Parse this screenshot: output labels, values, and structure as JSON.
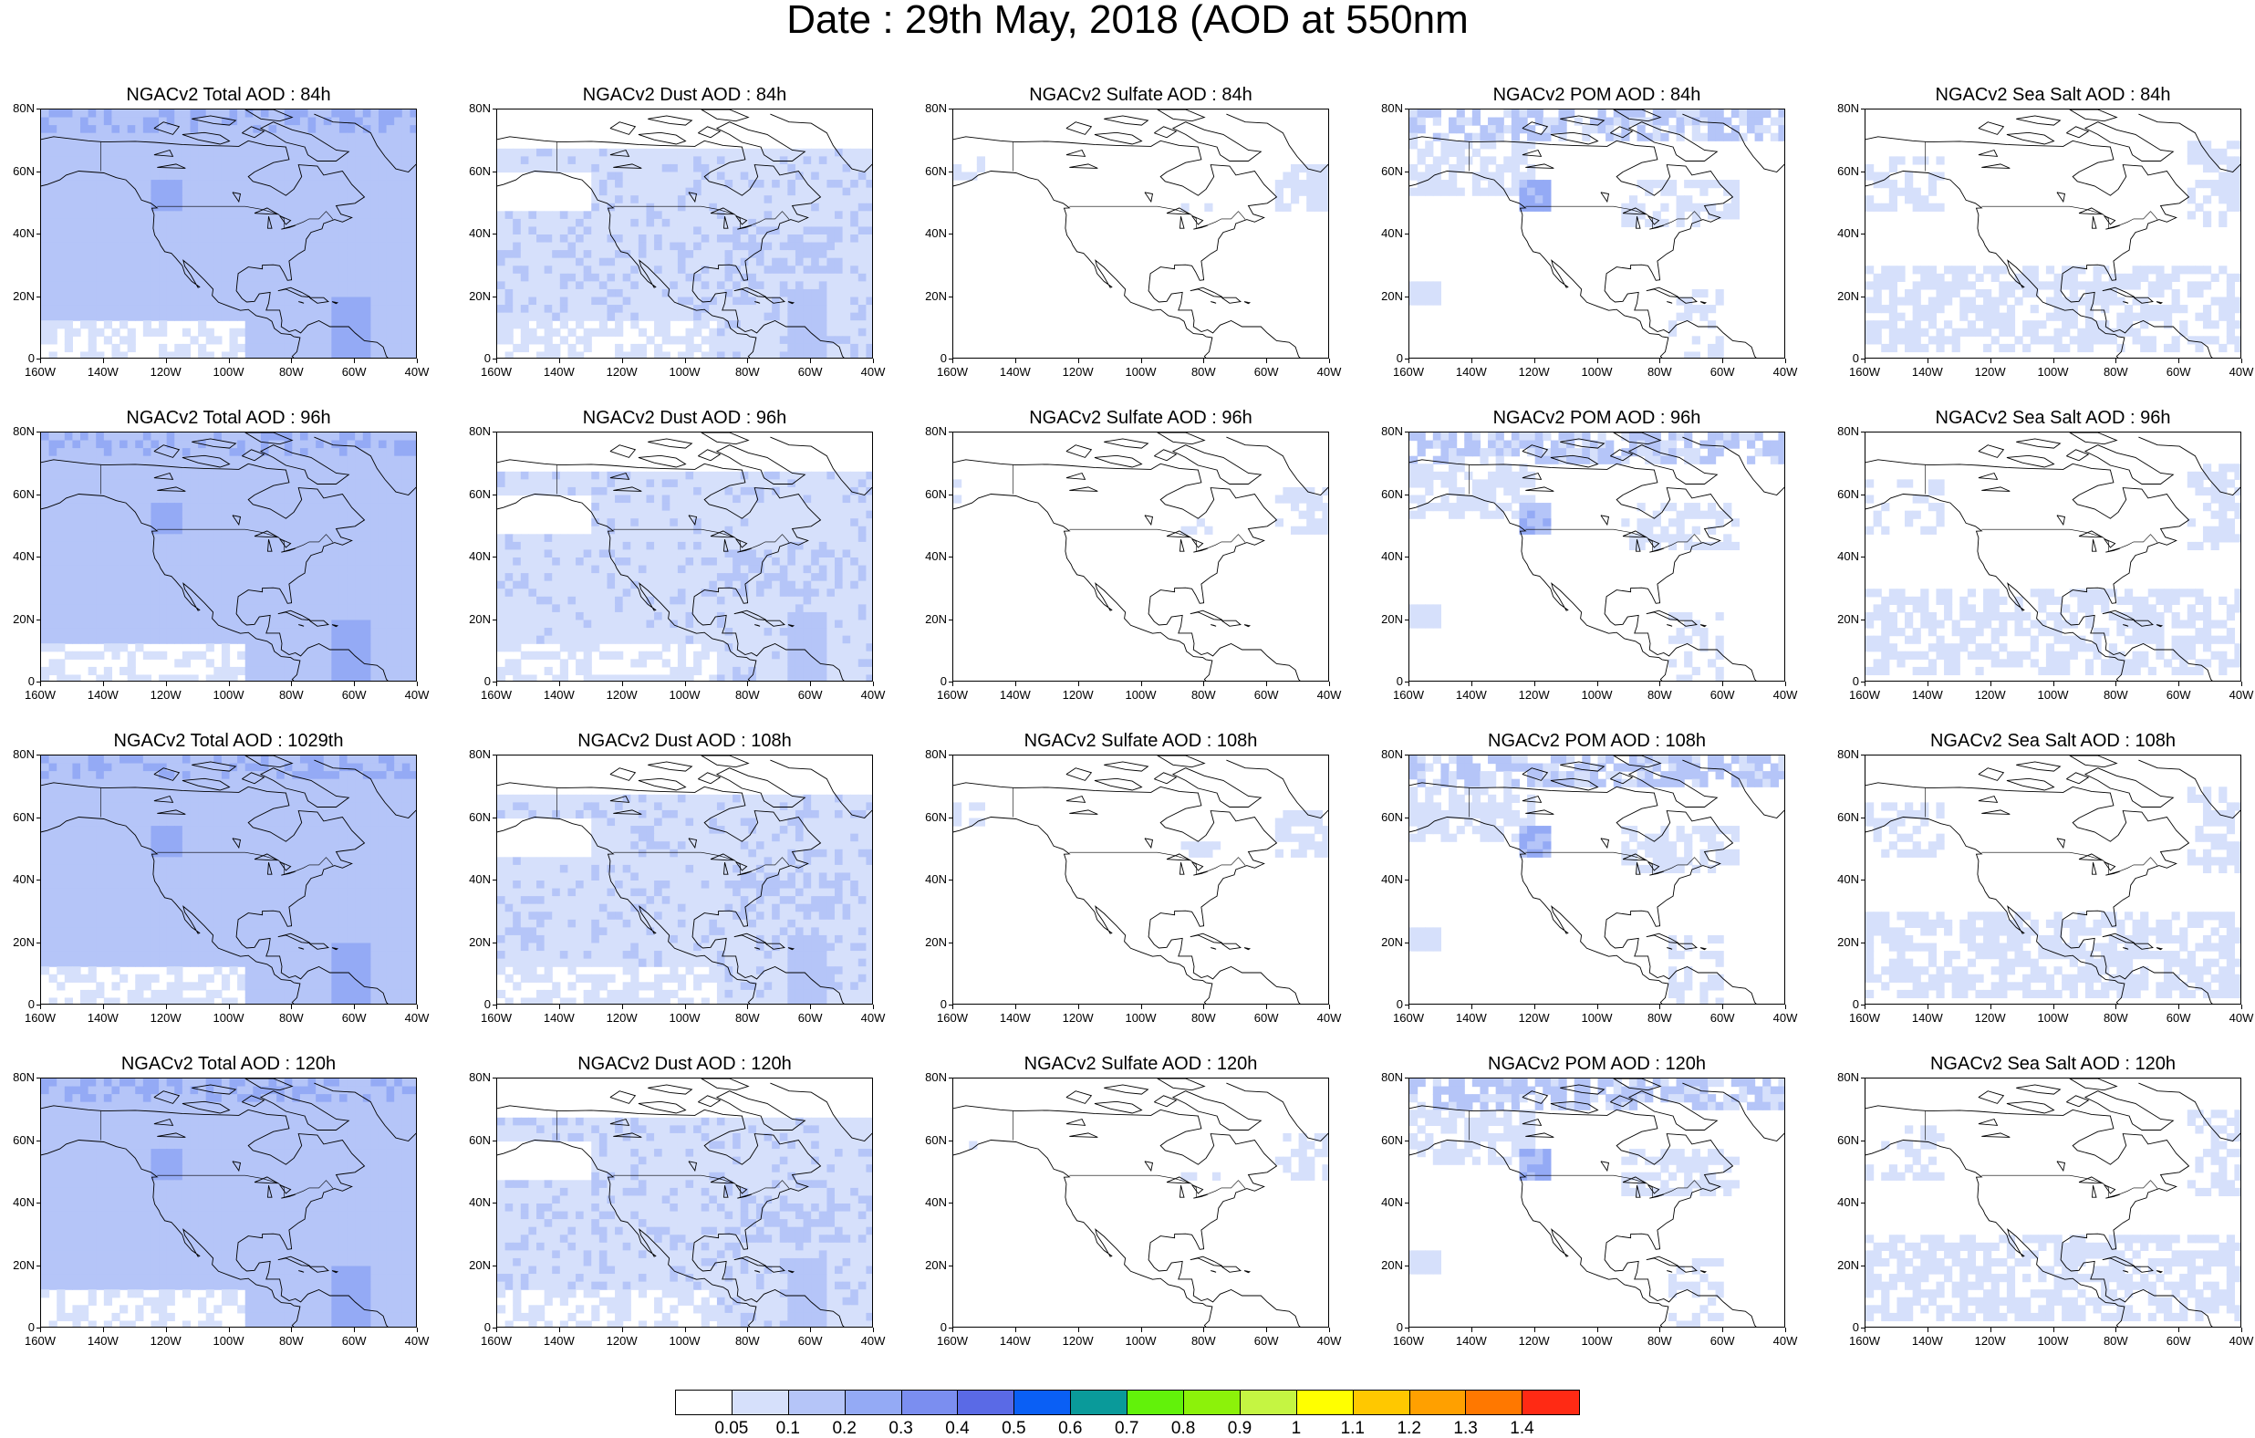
{
  "title": "Date : 29th May, 2018 (AOD at 550nm",
  "lat_labels": [
    "80N",
    "60N",
    "40N",
    "20N",
    "0"
  ],
  "lon_labels": [
    "160W",
    "140W",
    "120W",
    "100W",
    "80W",
    "60W",
    "40W"
  ],
  "panels": [
    {
      "title": "NGACv2 Total AOD : 84h",
      "species": "total"
    },
    {
      "title": "NGACv2 Dust AOD : 84h",
      "species": "dust"
    },
    {
      "title": "NGACv2 Sulfate AOD : 84h",
      "species": "sulfate"
    },
    {
      "title": "NGACv2 POM AOD : 84h",
      "species": "pom"
    },
    {
      "title": "NGACv2 Sea Salt AOD : 84h",
      "species": "seasalt"
    },
    {
      "title": "NGACv2 Total AOD : 96h",
      "species": "total"
    },
    {
      "title": "NGACv2 Dust AOD : 96h",
      "species": "dust"
    },
    {
      "title": "NGACv2 Sulfate AOD : 96h",
      "species": "sulfate"
    },
    {
      "title": "NGACv2 POM AOD : 96h",
      "species": "pom"
    },
    {
      "title": "NGACv2 Sea Salt AOD : 96h",
      "species": "seasalt"
    },
    {
      "title": "NGACv2 Total AOD : 1029th",
      "species": "total"
    },
    {
      "title": "NGACv2 Dust AOD : 108h",
      "species": "dust"
    },
    {
      "title": "NGACv2 Sulfate AOD : 108h",
      "species": "sulfate"
    },
    {
      "title": "NGACv2 POM AOD : 108h",
      "species": "pom"
    },
    {
      "title": "NGACv2 Sea Salt AOD : 108h",
      "species": "seasalt"
    },
    {
      "title": "NGACv2 Total AOD : 120h",
      "species": "total"
    },
    {
      "title": "NGACv2 Dust AOD : 120h",
      "species": "dust"
    },
    {
      "title": "NGACv2 Sulfate AOD : 120h",
      "species": "sulfate"
    },
    {
      "title": "NGACv2 POM AOD : 120h",
      "species": "pom"
    },
    {
      "title": "NGACv2 Sea Salt  AOD : 120h",
      "species": "seasalt"
    }
  ],
  "colorbar": {
    "colors": [
      "#ffffff",
      "#d6e0fb",
      "#b5c5f8",
      "#94aaf5",
      "#7b8ef0",
      "#5a6ae6",
      "#0a5ff5",
      "#0a9a9a",
      "#62f20a",
      "#8cf20a",
      "#c5f542",
      "#ffff00",
      "#ffc800",
      "#ffa000",
      "#ff7800",
      "#ff2a14"
    ],
    "labels": [
      "0.05",
      "0.1",
      "0.2",
      "0.3",
      "0.4",
      "0.5",
      "0.6",
      "0.7",
      "0.8",
      "0.9",
      "1",
      "1.1",
      "1.2",
      "1.3",
      "1.4"
    ]
  }
}
